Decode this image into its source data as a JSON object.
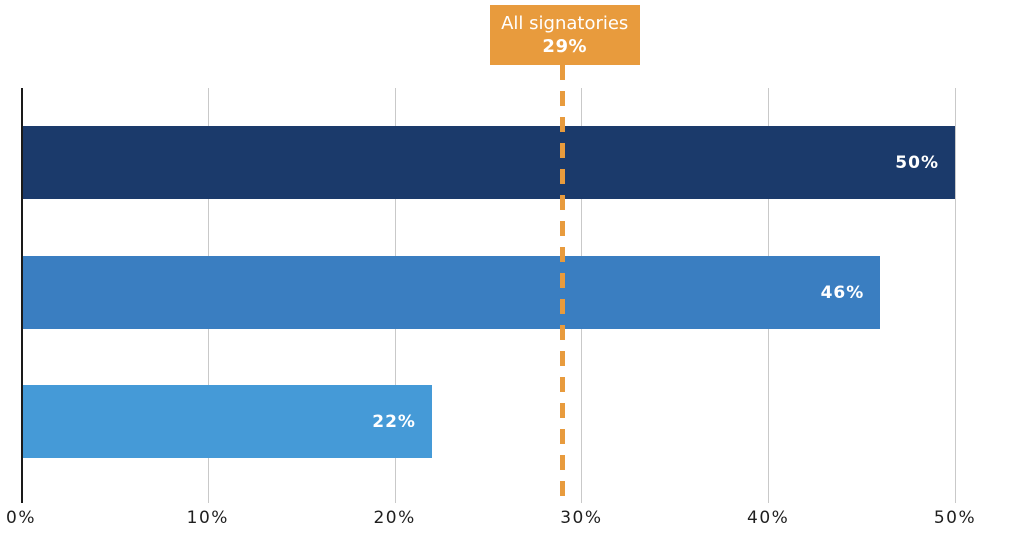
{
  "chart_data": {
    "type": "bar",
    "orientation": "horizontal",
    "title": "",
    "xlabel": "",
    "ylabel": "",
    "xlim": [
      0,
      50
    ],
    "grid": true,
    "categories": [
      "",
      "",
      ""
    ],
    "values": [
      50,
      46,
      22
    ],
    "value_labels": [
      "50%",
      "46%",
      "22%"
    ],
    "bar_colors": [
      "#1B3A6B",
      "#3A7EC1",
      "#459AD7"
    ],
    "x_ticks": [
      0,
      10,
      20,
      30,
      40,
      50
    ],
    "x_tick_labels": [
      "0%",
      "10%",
      "20%",
      "30%",
      "40%",
      "50%"
    ],
    "reference_line": {
      "value": 29,
      "label": "All signatories",
      "value_label": "29%",
      "style": "dashed",
      "color": "#E89B3D"
    }
  },
  "annotation": {
    "title": "All signatories",
    "value": "29%"
  },
  "colors": {
    "background": "#FFFFFF",
    "axis": "#1A1A1A",
    "gridline": "#C9C9C9",
    "tick_text": "#1F1F1F",
    "bar_label_text": "#FFFFFF",
    "annotation_bg": "#E89B3D",
    "annotation_text": "#FFFFFF"
  }
}
